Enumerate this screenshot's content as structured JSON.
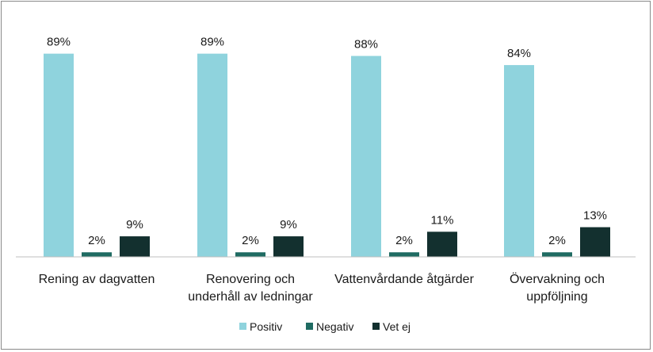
{
  "chart_data": {
    "type": "bar",
    "title": "",
    "xlabel": "",
    "ylabel": "",
    "ylim": [
      0,
      100
    ],
    "grid": false,
    "legend_position": "bottom",
    "categories": [
      [
        "Rening av dagvatten"
      ],
      [
        "Renovering och",
        "underhåll av ledningar"
      ],
      [
        "Vattenvårdande åtgärder"
      ],
      [
        "Övervakning och",
        "uppföljning"
      ]
    ],
    "series": [
      {
        "name": "Positiv",
        "color": "#8fd3dd",
        "values": [
          89,
          89,
          88,
          84
        ],
        "labels": [
          "89%",
          "89%",
          "88%",
          "84%"
        ]
      },
      {
        "name": "Negativ",
        "color": "#1f6b62",
        "values": [
          2,
          2,
          2,
          2
        ],
        "labels": [
          "2%",
          "2%",
          "2%",
          "2%"
        ]
      },
      {
        "name": "Vet ej",
        "color": "#13302f",
        "values": [
          9,
          9,
          11,
          13
        ],
        "labels": [
          "9%",
          "9%",
          "11%",
          "13%"
        ]
      }
    ]
  }
}
